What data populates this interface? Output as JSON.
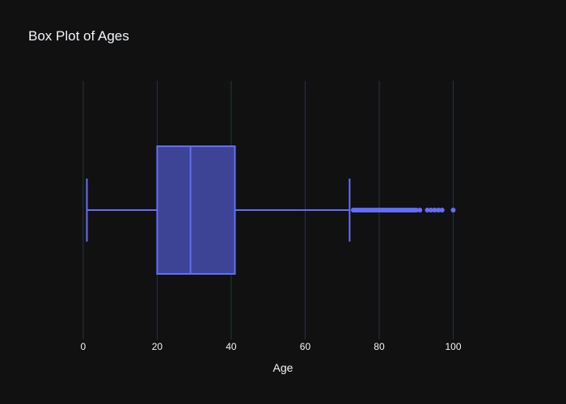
{
  "chart_data": {
    "type": "box",
    "title": "Box Plot of Ages",
    "xlabel": "Age",
    "ylabel": "",
    "orientation": "horizontal",
    "xlim": [
      -5,
      113
    ],
    "xticks": [
      0,
      20,
      40,
      60,
      80,
      100
    ],
    "grid": true,
    "legend": false,
    "box": {
      "min": 1,
      "q1": 20,
      "median": 29,
      "q3": 41,
      "max": 72,
      "outliers": [
        73,
        73.5,
        74,
        74.5,
        75,
        75.5,
        76,
        76.5,
        77,
        77.5,
        78,
        78.5,
        79,
        79.5,
        80,
        80.5,
        81,
        81.5,
        82,
        82.5,
        83,
        83.5,
        84,
        84.5,
        85,
        85.5,
        86,
        86.5,
        87,
        87.5,
        88,
        88.5,
        89,
        89.5,
        90,
        91,
        93,
        94,
        95,
        96,
        97,
        100
      ]
    },
    "colors": {
      "background": "#111111",
      "grid": "#283442",
      "box_line": "#636efa",
      "box_fill": "#3d4496",
      "text": "#f2f5fa"
    }
  }
}
